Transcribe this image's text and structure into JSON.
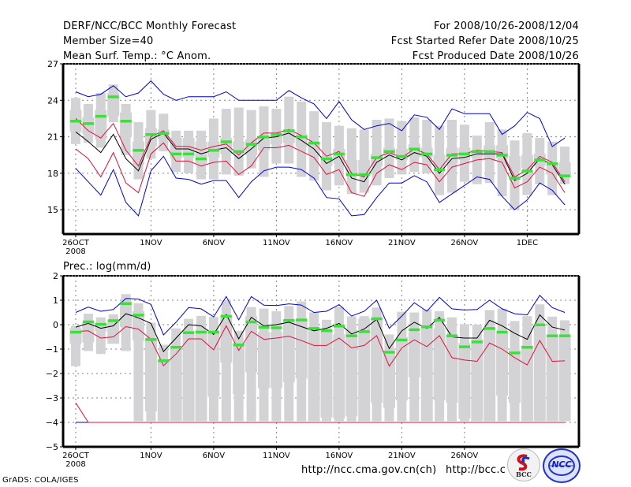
{
  "header": {
    "title": "DERF/NCC/BCC Monthly Forecast",
    "member_size": "Member Size=40",
    "variable_top": "Mean Surf. Temp.: °C Anom.",
    "for_period": "For 2008/10/26-2008/12/04",
    "started_refer": "Fcst Started Refer Date 2008/10/25",
    "produced": "Fcst Produced Date 2008/10/26"
  },
  "footer": {
    "grads": "GrADS: COLA/IGES",
    "url_ncc": "http://ncc.cma.gov.cn(ch)",
    "url_bcc": "http://bcc.c",
    "logo_bcc": "BCC",
    "logo_ncc": "NCC"
  },
  "colors": {
    "box": "#d3d3d6",
    "median": "#3ce03c",
    "mean": "#000000",
    "red": "#e0103c",
    "blue": "#0000d8",
    "grid": "#808080"
  },
  "chart_data": [
    {
      "type": "box",
      "title": "Mean Surf. Temp.: °C Anom.",
      "xlabel": "",
      "ylabel": "",
      "ylim": [
        13,
        27
      ],
      "yticks": [
        15,
        18,
        21,
        24,
        27
      ],
      "grid": true,
      "x_start": "2008-10-26",
      "n_days": 40,
      "xtick_labels": [
        {
          "day": 0,
          "label": "26OCT",
          "sub": "2008"
        },
        {
          "day": 6,
          "label": "1NOV"
        },
        {
          "day": 11,
          "label": "6NOV"
        },
        {
          "day": 16,
          "label": "11NOV"
        },
        {
          "day": 21,
          "label": "16NOV"
        },
        {
          "day": 26,
          "label": "21NOV"
        },
        {
          "day": 31,
          "label": "26NOV"
        },
        {
          "day": 36,
          "label": "1DEC"
        }
      ],
      "series": {
        "box_max": [
          24.2,
          23.7,
          24.6,
          25.3,
          23.7,
          22.2,
          23.2,
          22.9,
          21.5,
          21.5,
          21.5,
          22.5,
          23.3,
          23.4,
          23.2,
          23.5,
          23.3,
          24.3,
          23.9,
          23.1,
          22.2,
          21.9,
          21.7,
          21.6,
          22.4,
          22.5,
          22.3,
          22.6,
          22.4,
          21.9,
          22.4,
          22.0,
          21.1,
          22.2,
          21.6,
          20.7,
          21.3,
          20.9,
          20.6,
          20.2
        ],
        "box_q3": [
          23.2,
          22.6,
          23.2,
          24.6,
          23.0,
          20.6,
          21.7,
          21.6,
          20.9,
          20.9,
          20.6,
          20.6,
          20.9,
          20.6,
          20.8,
          20.9,
          21.3,
          21.6,
          21.2,
          20.6,
          19.4,
          20.0,
          19.1,
          19.1,
          19.6,
          20.1,
          20.0,
          20.4,
          20.1,
          19.5,
          20.1,
          20.1,
          19.9,
          20.3,
          20.3,
          19.4,
          19.5,
          19.6,
          18.7,
          18.9
        ],
        "box_q1": [
          21.4,
          21.2,
          20.8,
          22.7,
          21.0,
          18.7,
          20.2,
          20.8,
          19.2,
          19.3,
          18.8,
          19.3,
          19.6,
          19.8,
          19.5,
          19.9,
          20.4,
          20.5,
          20.2,
          19.5,
          18.6,
          18.8,
          17.9,
          17.8,
          18.6,
          19.5,
          19.1,
          19.3,
          19.3,
          18.6,
          18.8,
          19.1,
          19.3,
          19.1,
          19.2,
          18.2,
          18.4,
          18.6,
          17.9,
          17.8
        ],
        "box_min": [
          20.4,
          20.5,
          20.1,
          22.2,
          19.5,
          17.5,
          19.2,
          19.8,
          18.1,
          18.0,
          17.5,
          17.5,
          17.9,
          17.8,
          18.4,
          17.7,
          18.8,
          18.8,
          17.7,
          17.4,
          16.6,
          17.0,
          16.3,
          16.4,
          17.0,
          17.6,
          17.9,
          18.1,
          18.0,
          16.2,
          16.4,
          17.3,
          17.1,
          17.2,
          16.1,
          15.0,
          16.2,
          17.1,
          16.2,
          17.1
        ],
        "median": [
          22.3,
          22.1,
          22.7,
          24.3,
          22.3,
          19.9,
          21.2,
          21.3,
          19.6,
          19.6,
          19.2,
          19.9,
          20.6,
          19.8,
          20.4,
          21.0,
          21.2,
          21.5,
          21.0,
          20.5,
          19.2,
          19.6,
          17.9,
          17.9,
          19.3,
          19.8,
          19.4,
          20.0,
          19.6,
          18.3,
          19.5,
          19.6,
          19.8,
          19.8,
          19.5,
          17.6,
          18.2,
          19.1,
          18.8,
          17.8
        ],
        "mean": [
          21.4,
          20.6,
          19.7,
          21.2,
          19.2,
          18.2,
          20.8,
          21.3,
          20.0,
          20.0,
          19.6,
          19.9,
          20.1,
          19.2,
          20.0,
          20.9,
          21.0,
          21.3,
          20.7,
          20.0,
          18.8,
          19.4,
          17.6,
          17.3,
          18.9,
          19.5,
          19.1,
          19.7,
          19.4,
          18.0,
          19.2,
          19.3,
          19.6,
          19.6,
          19.6,
          17.4,
          18.0,
          19.2,
          18.7,
          17.1
        ],
        "red_upper": [
          22.5,
          21.5,
          20.9,
          22.1,
          19.9,
          18.6,
          21.0,
          21.5,
          20.2,
          20.2,
          19.9,
          20.2,
          20.4,
          19.5,
          20.5,
          21.3,
          21.3,
          21.6,
          21.1,
          20.5,
          19.4,
          19.8,
          18.0,
          17.7,
          19.3,
          19.7,
          19.3,
          20.0,
          19.6,
          18.3,
          19.6,
          19.6,
          19.9,
          19.8,
          19.7,
          17.7,
          18.3,
          19.4,
          18.9,
          17.3
        ],
        "red_lower": [
          20.0,
          19.2,
          17.7,
          19.7,
          17.2,
          16.4,
          19.6,
          20.5,
          19.0,
          19.0,
          18.6,
          18.9,
          19.0,
          17.9,
          18.6,
          20.1,
          20.1,
          20.3,
          19.8,
          19.3,
          17.9,
          18.3,
          16.4,
          16.1,
          18.0,
          18.7,
          18.3,
          18.9,
          18.7,
          17.3,
          18.5,
          18.8,
          19.1,
          19.2,
          18.9,
          16.8,
          17.3,
          18.5,
          18.0,
          16.4
        ],
        "blue_upper": [
          24.7,
          24.3,
          24.5,
          25.2,
          24.3,
          24.6,
          25.6,
          24.5,
          24.0,
          24.3,
          24.3,
          24.3,
          24.7,
          24.0,
          24.0,
          24.0,
          24.0,
          24.8,
          24.2,
          23.7,
          22.5,
          23.9,
          22.4,
          21.6,
          21.9,
          22.1,
          21.5,
          22.8,
          22.6,
          21.6,
          23.3,
          22.9,
          22.9,
          22.9,
          21.2,
          21.9,
          23.0,
          22.5,
          20.2,
          20.9
        ],
        "blue_lower": [
          18.4,
          17.3,
          16.2,
          18.3,
          15.6,
          14.5,
          18.2,
          19.4,
          17.6,
          17.5,
          17.1,
          17.4,
          17.4,
          16.0,
          17.3,
          18.2,
          18.5,
          18.5,
          18.3,
          17.6,
          16.0,
          15.9,
          14.5,
          14.6,
          16.0,
          17.2,
          17.2,
          17.8,
          17.3,
          15.6,
          16.3,
          17.0,
          17.7,
          17.5,
          16.1,
          15.0,
          15.8,
          17.2,
          16.6,
          15.4
        ]
      }
    },
    {
      "type": "box",
      "title": "Prec.: log(mm/d)",
      "xlabel": "",
      "ylabel": "",
      "ylim": [
        -5,
        2
      ],
      "yticks": [
        -5,
        -4,
        -3,
        -2,
        -1,
        0,
        1,
        2
      ],
      "grid": true,
      "x_start": "2008-10-26",
      "n_days": 40,
      "xtick_labels": [
        {
          "day": 0,
          "label": "26OCT",
          "sub": "2008"
        },
        {
          "day": 6,
          "label": "1NOV"
        },
        {
          "day": 11,
          "label": "6NOV"
        },
        {
          "day": 16,
          "label": "11NOV"
        },
        {
          "day": 21,
          "label": "16NOV"
        },
        {
          "day": 26,
          "label": "21NOV"
        },
        {
          "day": 31,
          "label": "26NOV"
        }
      ],
      "series": {
        "box_max": [
          -0.05,
          0.45,
          0.3,
          0.42,
          1.25,
          0.88,
          0.08,
          -0.82,
          -0.15,
          0.24,
          0.36,
          0.32,
          1.0,
          -0.25,
          0.72,
          0.66,
          0.55,
          0.76,
          0.95,
          0.5,
          0.2,
          0.73,
          0.34,
          0.35,
          0.7,
          -0.4,
          0.53,
          0.5,
          0.63,
          0.55,
          0.3,
          0.02,
          0.0,
          0.6,
          0.65,
          0.15,
          0.35,
          0.83,
          0.33,
          0.18
        ],
        "box_q3": [
          -0.15,
          0.1,
          0.05,
          0.15,
          0.95,
          0.55,
          -0.55,
          -1.4,
          -0.9,
          -0.25,
          -0.2,
          -0.25,
          0.4,
          -0.75,
          0.35,
          -0.3,
          -0.3,
          0.2,
          0.2,
          -0.15,
          -0.25,
          -0.4,
          -0.2,
          0.25,
          0.3,
          -1.05,
          -0.5,
          -0.3,
          -0.05,
          -0.15,
          -0.45,
          -0.75,
          -0.6,
          -0.1,
          -0.35,
          -1.05,
          -0.85,
          0.0,
          -0.4,
          -0.4
        ],
        "box_q1": [
          -0.78,
          -0.72,
          -0.28,
          -0.78,
          -0.1,
          -0.65,
          -3.55,
          -3.95,
          -3.95,
          -3.95,
          -3.95,
          -2.95,
          -1.55,
          -2.85,
          -1.95,
          -2.6,
          -2.6,
          -2.35,
          -2.2,
          -3.95,
          -3.8,
          -3.85,
          -3.75,
          -3.95,
          -3.2,
          -3.4,
          -3.1,
          -2.15,
          -3.95,
          -3.1,
          -3.2,
          -3.85,
          -3.95,
          -3.95,
          -2.9,
          -3.2,
          -3.95,
          -3.95,
          -3.95,
          -3.95
        ],
        "box_min": [
          -1.7,
          -1.08,
          -1.2,
          -0.78,
          -1.08,
          -3.95,
          -3.95,
          -3.95,
          -3.95,
          -3.95,
          -3.95,
          -3.95,
          -3.95,
          -3.95,
          -3.95,
          -3.95,
          -3.95,
          -3.95,
          -3.95,
          -3.95,
          -3.95,
          -3.95,
          -3.95,
          -3.95,
          -3.95,
          -3.95,
          -3.95,
          -3.95,
          -3.95,
          -3.95,
          -3.95,
          -3.95,
          -3.95,
          -3.95,
          -3.95,
          -3.95,
          -3.95,
          -3.95,
          -3.95,
          -3.95
        ],
        "median": [
          -0.3,
          0.12,
          0.02,
          0.17,
          0.87,
          0.4,
          -0.6,
          -1.47,
          -0.92,
          -0.32,
          -0.3,
          -0.3,
          0.35,
          -0.82,
          0.12,
          -0.1,
          -0.12,
          0.18,
          0.2,
          -0.15,
          -0.24,
          -0.05,
          -0.45,
          -0.28,
          0.25,
          -1.12,
          -0.62,
          -0.2,
          -0.08,
          0.19,
          -0.45,
          -0.9,
          -0.7,
          -0.15,
          -0.3,
          -1.15,
          -0.92,
          0.0,
          -0.45,
          -0.45
        ],
        "mean": [
          -0.1,
          0.05,
          -0.15,
          -0.05,
          0.45,
          0.28,
          0.05,
          -1.1,
          -0.55,
          0.0,
          -0.05,
          -0.4,
          0.42,
          -0.58,
          0.3,
          -0.05,
          0.0,
          0.1,
          -0.08,
          -0.25,
          -0.15,
          0.05,
          -0.38,
          -0.18,
          0.22,
          -0.98,
          -0.25,
          0.1,
          -0.15,
          0.3,
          -0.5,
          -0.55,
          -0.55,
          0.18,
          -0.05,
          -0.35,
          -0.6,
          0.4,
          -0.1,
          -0.22
        ],
        "red_upper": [
          -0.28,
          -0.25,
          -0.55,
          -0.5,
          -0.08,
          -0.18,
          -0.6,
          -1.68,
          -1.2,
          -0.58,
          -0.58,
          -1.03,
          -0.05,
          -1.05,
          -0.27,
          -0.6,
          -0.55,
          -0.47,
          -0.65,
          -0.85,
          -0.85,
          -0.55,
          -0.95,
          -0.85,
          -0.45,
          -1.7,
          -0.95,
          -0.62,
          -0.9,
          -0.45,
          -1.35,
          -1.45,
          -1.5,
          -0.75,
          -1.0,
          -1.35,
          -1.65,
          -0.65,
          -1.5,
          -1.48
        ],
        "red_lower": [
          -3.2,
          -4.0,
          -4.0,
          -4.0,
          -4.0,
          -4.0,
          -4.0,
          -4.0,
          -4.0,
          -4.0,
          -4.0,
          -4.0,
          -4.0,
          -4.0,
          -4.0,
          -4.0,
          -4.0,
          -4.0,
          -4.0,
          -4.0,
          -4.0,
          -4.0,
          -4.0,
          -4.0,
          -4.0,
          -4.0,
          -4.0,
          -4.0,
          -4.0,
          -4.0,
          -4.0,
          -4.0,
          -4.0,
          -4.0,
          -4.0,
          -4.0,
          -4.0,
          -4.0,
          -4.0,
          -4.0
        ],
        "blue_upper": [
          0.5,
          0.72,
          0.55,
          0.62,
          1.07,
          1.05,
          0.83,
          -0.42,
          0.1,
          0.7,
          0.65,
          0.32,
          1.15,
          0.2,
          1.15,
          0.8,
          0.78,
          0.85,
          0.8,
          0.5,
          0.55,
          0.82,
          0.35,
          0.55,
          1.0,
          -0.15,
          0.35,
          0.9,
          0.55,
          1.12,
          0.65,
          0.6,
          0.62,
          1.0,
          0.65,
          0.45,
          0.4,
          1.2,
          0.7,
          0.5
        ],
        "blue_lower": [
          -4.0,
          -4.0,
          -4.0,
          -4.0,
          -4.0,
          -4.0,
          -4.0,
          -4.0,
          -4.0,
          -4.0,
          -4.0,
          -4.0,
          -4.0,
          -4.0,
          -4.0,
          -4.0,
          -4.0,
          -4.0,
          -4.0,
          -4.0,
          -4.0,
          -4.0,
          -4.0,
          -4.0,
          -4.0,
          -4.0,
          -4.0,
          -4.0,
          -4.0,
          -4.0,
          -4.0,
          -4.0,
          -4.0,
          -4.0,
          -4.0,
          -4.0,
          -4.0,
          -4.0,
          -4.0,
          -4.0
        ]
      }
    }
  ]
}
